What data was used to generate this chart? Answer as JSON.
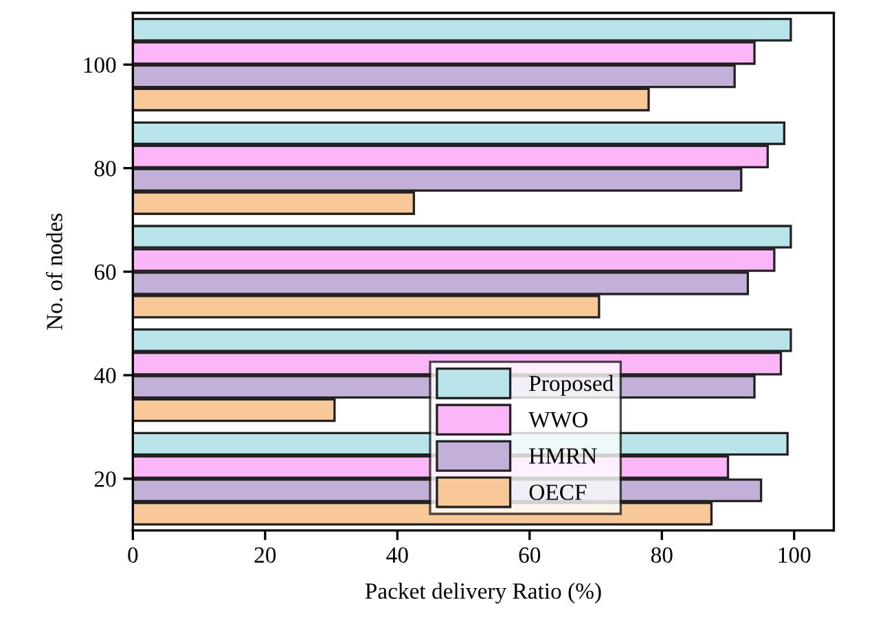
{
  "chart_data": {
    "type": "bar",
    "orientation": "horizontal",
    "xlabel": "Packet delivery Ratio (%)",
    "ylabel": "No. of nodes",
    "categories": [
      "100",
      "80",
      "60",
      "40",
      "20"
    ],
    "series": [
      {
        "name": "Proposed",
        "color": "#b8e4ea",
        "values": [
          99.5,
          98.5,
          99.5,
          99.5,
          99
        ]
      },
      {
        "name": "WWO",
        "color": "#fbb6f7",
        "values": [
          94,
          96,
          97,
          98,
          90
        ]
      },
      {
        "name": "HMRN",
        "color": "#c2b0d8",
        "values": [
          91,
          92,
          93,
          94,
          95
        ]
      },
      {
        "name": "OECF",
        "color": "#f9c898",
        "values": [
          78,
          42.5,
          70.5,
          30.5,
          87.5
        ]
      }
    ],
    "xlim": [
      0,
      106
    ],
    "xticks": [
      0,
      20,
      40,
      60,
      80,
      100
    ],
    "legend": "bottom",
    "grid": false
  }
}
